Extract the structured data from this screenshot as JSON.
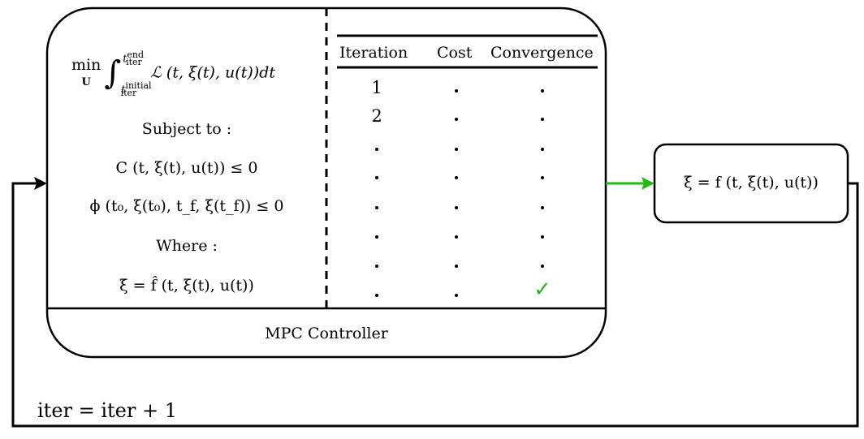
{
  "mpc": {
    "objective": {
      "op": "min",
      "var": "U",
      "lower": "t",
      "lower_sup": "initial",
      "lower_sub": "iter",
      "upper": "t",
      "upper_sup": "end",
      "upper_sub": "iter",
      "integrand": "ℒ (t, ξ(t), u(t))dt"
    },
    "subject_to": "Subject to :",
    "constraint1": "C (t, ξ(t), u(t)) ≤ 0",
    "constraint2": "ϕ (t₀, ξ(t₀), t_f, ξ(t_f)) ≤ 0",
    "where": "Where :",
    "model": "ξ̇ = f̂ (t, ξ(t), u(t))",
    "footer": "MPC Controller"
  },
  "table": {
    "headers": [
      "Iteration",
      "Cost",
      "Convergence"
    ],
    "rows": [
      {
        "iteration": "1",
        "cost": ".",
        "convergence": "."
      },
      {
        "iteration": "2",
        "cost": ".",
        "convergence": "."
      },
      {
        "iteration": ".",
        "cost": ".",
        "convergence": "."
      },
      {
        "iteration": ".",
        "cost": ".",
        "convergence": "."
      },
      {
        "iteration": ".",
        "cost": ".",
        "convergence": "."
      },
      {
        "iteration": ".",
        "cost": ".",
        "convergence": "."
      },
      {
        "iteration": ".",
        "cost": ".",
        "convergence": "."
      },
      {
        "iteration": ".",
        "cost": ".",
        "convergence": "✓"
      }
    ]
  },
  "plant": {
    "equation": "ξ̇ = f (t, ξ(t), u(t))"
  },
  "feedback": {
    "label": "iter = iter + 1"
  },
  "colors": {
    "arrow_to_plant": "#22bb11",
    "checkmark": "#22bb11"
  }
}
